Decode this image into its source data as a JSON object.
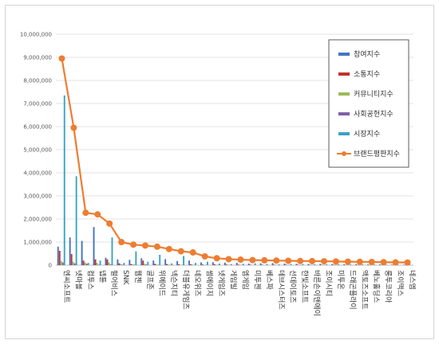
{
  "chart_data": {
    "type": "bar",
    "ylim": [
      0,
      10000000
    ],
    "yticks": [
      "0",
      "1,000,000",
      "2,000,000",
      "3,000,000",
      "4,000,000",
      "5,000,000",
      "6,000,000",
      "7,000,000",
      "8,000,000",
      "9,000,000",
      "10,000,000"
    ],
    "ytick_values": [
      0,
      1000000,
      2000000,
      3000000,
      4000000,
      5000000,
      6000000,
      7000000,
      8000000,
      9000000,
      10000000
    ],
    "grid": true,
    "legend_position": "top-right",
    "categories": [
      "엔씨소프트",
      "넷마블",
      "컴투스",
      "넵튠",
      "펄어비스",
      "SNK",
      "웹젠",
      "골프존",
      "위메이드",
      "넥슨지티",
      "더블유게임즈",
      "네오위즈",
      "썸에이지",
      "넷게임즈",
      "게임빌",
      "엠게임",
      "미투젠",
      "베스파",
      "데브시스터즈",
      "선데이토즈",
      "한빛소프트",
      "바른손이앤에이",
      "조이시티",
      "미투온",
      "드래곤플라이",
      "액토즈소프트",
      "베노홀딩스",
      "룽투코리아",
      "조이맥스",
      "네스엠"
    ],
    "series": [
      {
        "name": "참여지수",
        "color": "#4472c4",
        "values": [
          800000,
          1200000,
          1050000,
          1650000,
          320000,
          250000,
          230000,
          300000,
          200000,
          260000,
          180000,
          200000,
          120000,
          130000,
          110000,
          100000,
          70000,
          80000,
          90000,
          70000,
          60000,
          50000,
          60000,
          50000,
          40000,
          40000,
          30000,
          30000,
          25000,
          20000
        ]
      },
      {
        "name": "소통지수",
        "color": "#c0302e",
        "values": [
          620000,
          480000,
          200000,
          250000,
          250000,
          80000,
          50000,
          200000,
          60000,
          50000,
          40000,
          40000,
          30000,
          40000,
          30000,
          25000,
          20000,
          20000,
          20000,
          20000,
          15000,
          15000,
          15000,
          15000,
          10000,
          10000,
          10000,
          10000,
          8000,
          8000
        ]
      },
      {
        "name": "커뮤니티지수",
        "color": "#9bbb59",
        "values": [
          180000,
          150000,
          120000,
          100000,
          120000,
          50000,
          40000,
          60000,
          30000,
          30000,
          20000,
          30000,
          15000,
          20000,
          15000,
          12000,
          10000,
          10000,
          12000,
          10000,
          8000,
          8000,
          8000,
          8000,
          6000,
          6000,
          5000,
          5000,
          5000,
          4000
        ]
      },
      {
        "name": "사회공헌지수",
        "color": "#7f5fa8",
        "values": [
          120000,
          80000,
          60000,
          20000,
          30000,
          20000,
          20000,
          30000,
          15000,
          10000,
          10000,
          10000,
          8000,
          8000,
          8000,
          6000,
          5000,
          5000,
          5000,
          5000,
          4000,
          4000,
          4000,
          4000,
          3000,
          3000,
          3000,
          3000,
          2000,
          2000
        ]
      },
      {
        "name": "시장지수",
        "color": "#3aa3c2",
        "values": [
          7350000,
          3850000,
          100000,
          200000,
          1200000,
          100000,
          600000,
          150000,
          450000,
          80000,
          400000,
          100000,
          150000,
          70000,
          50000,
          60000,
          80000,
          50000,
          40000,
          50000,
          50000,
          40000,
          40000,
          40000,
          30000,
          30000,
          30000,
          25000,
          20000,
          20000
        ]
      }
    ],
    "line_series": {
      "name": "브랜드평판지수",
      "color": "#ed7d31",
      "values": [
        8950000,
        5950000,
        2270000,
        2200000,
        1800000,
        1000000,
        890000,
        850000,
        800000,
        700000,
        600000,
        550000,
        380000,
        300000,
        260000,
        240000,
        220000,
        210000,
        200000,
        190000,
        180000,
        175000,
        170000,
        160000,
        150000,
        145000,
        140000,
        130000,
        120000,
        115000
      ]
    }
  }
}
